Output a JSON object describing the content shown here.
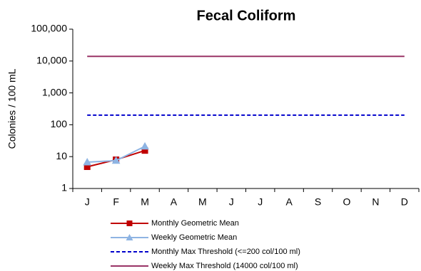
{
  "chart_data": {
    "type": "line",
    "title": "Fecal Coliform",
    "y_label": "Colonies / 100 mL",
    "categories": [
      "J",
      "F",
      "M",
      "A",
      "M",
      "J",
      "J",
      "A",
      "S",
      "O",
      "N",
      "D"
    ],
    "log_scale": true,
    "ylim": [
      1,
      100000
    ],
    "yticks": [
      1,
      10,
      100,
      {
        "value": 1000,
        "label": "1,000"
      },
      {
        "value": 10000,
        "label": "10,000"
      },
      {
        "value": 100000,
        "label": "100,000"
      }
    ],
    "series": [
      {
        "name": "Monthly Geometric Mean",
        "color": "#c00000",
        "marker": "square",
        "dash": false,
        "values": [
          4.8,
          8,
          15.5,
          null,
          null,
          null,
          null,
          null,
          null,
          null,
          null,
          null
        ]
      },
      {
        "name": "Weekly Geometric Mean",
        "color": "#8eb4e3",
        "marker": "triangle",
        "dash": false,
        "values": [
          6.7,
          7.5,
          21,
          null,
          null,
          null,
          null,
          null,
          null,
          null,
          null,
          null
        ]
      },
      {
        "name": "Monthly Max Threshold (<=200 col/100 ml)",
        "color": "#0000cc",
        "marker": "none",
        "dash": true,
        "values": [
          200,
          200,
          200,
          200,
          200,
          200,
          200,
          200,
          200,
          200,
          200,
          200
        ]
      },
      {
        "name": "Weekly Max Threshold (14000 col/100 ml)",
        "color": "#993366",
        "marker": "none",
        "dash": false,
        "values": [
          14000,
          14000,
          14000,
          14000,
          14000,
          14000,
          14000,
          14000,
          14000,
          14000,
          14000,
          14000
        ]
      }
    ]
  }
}
